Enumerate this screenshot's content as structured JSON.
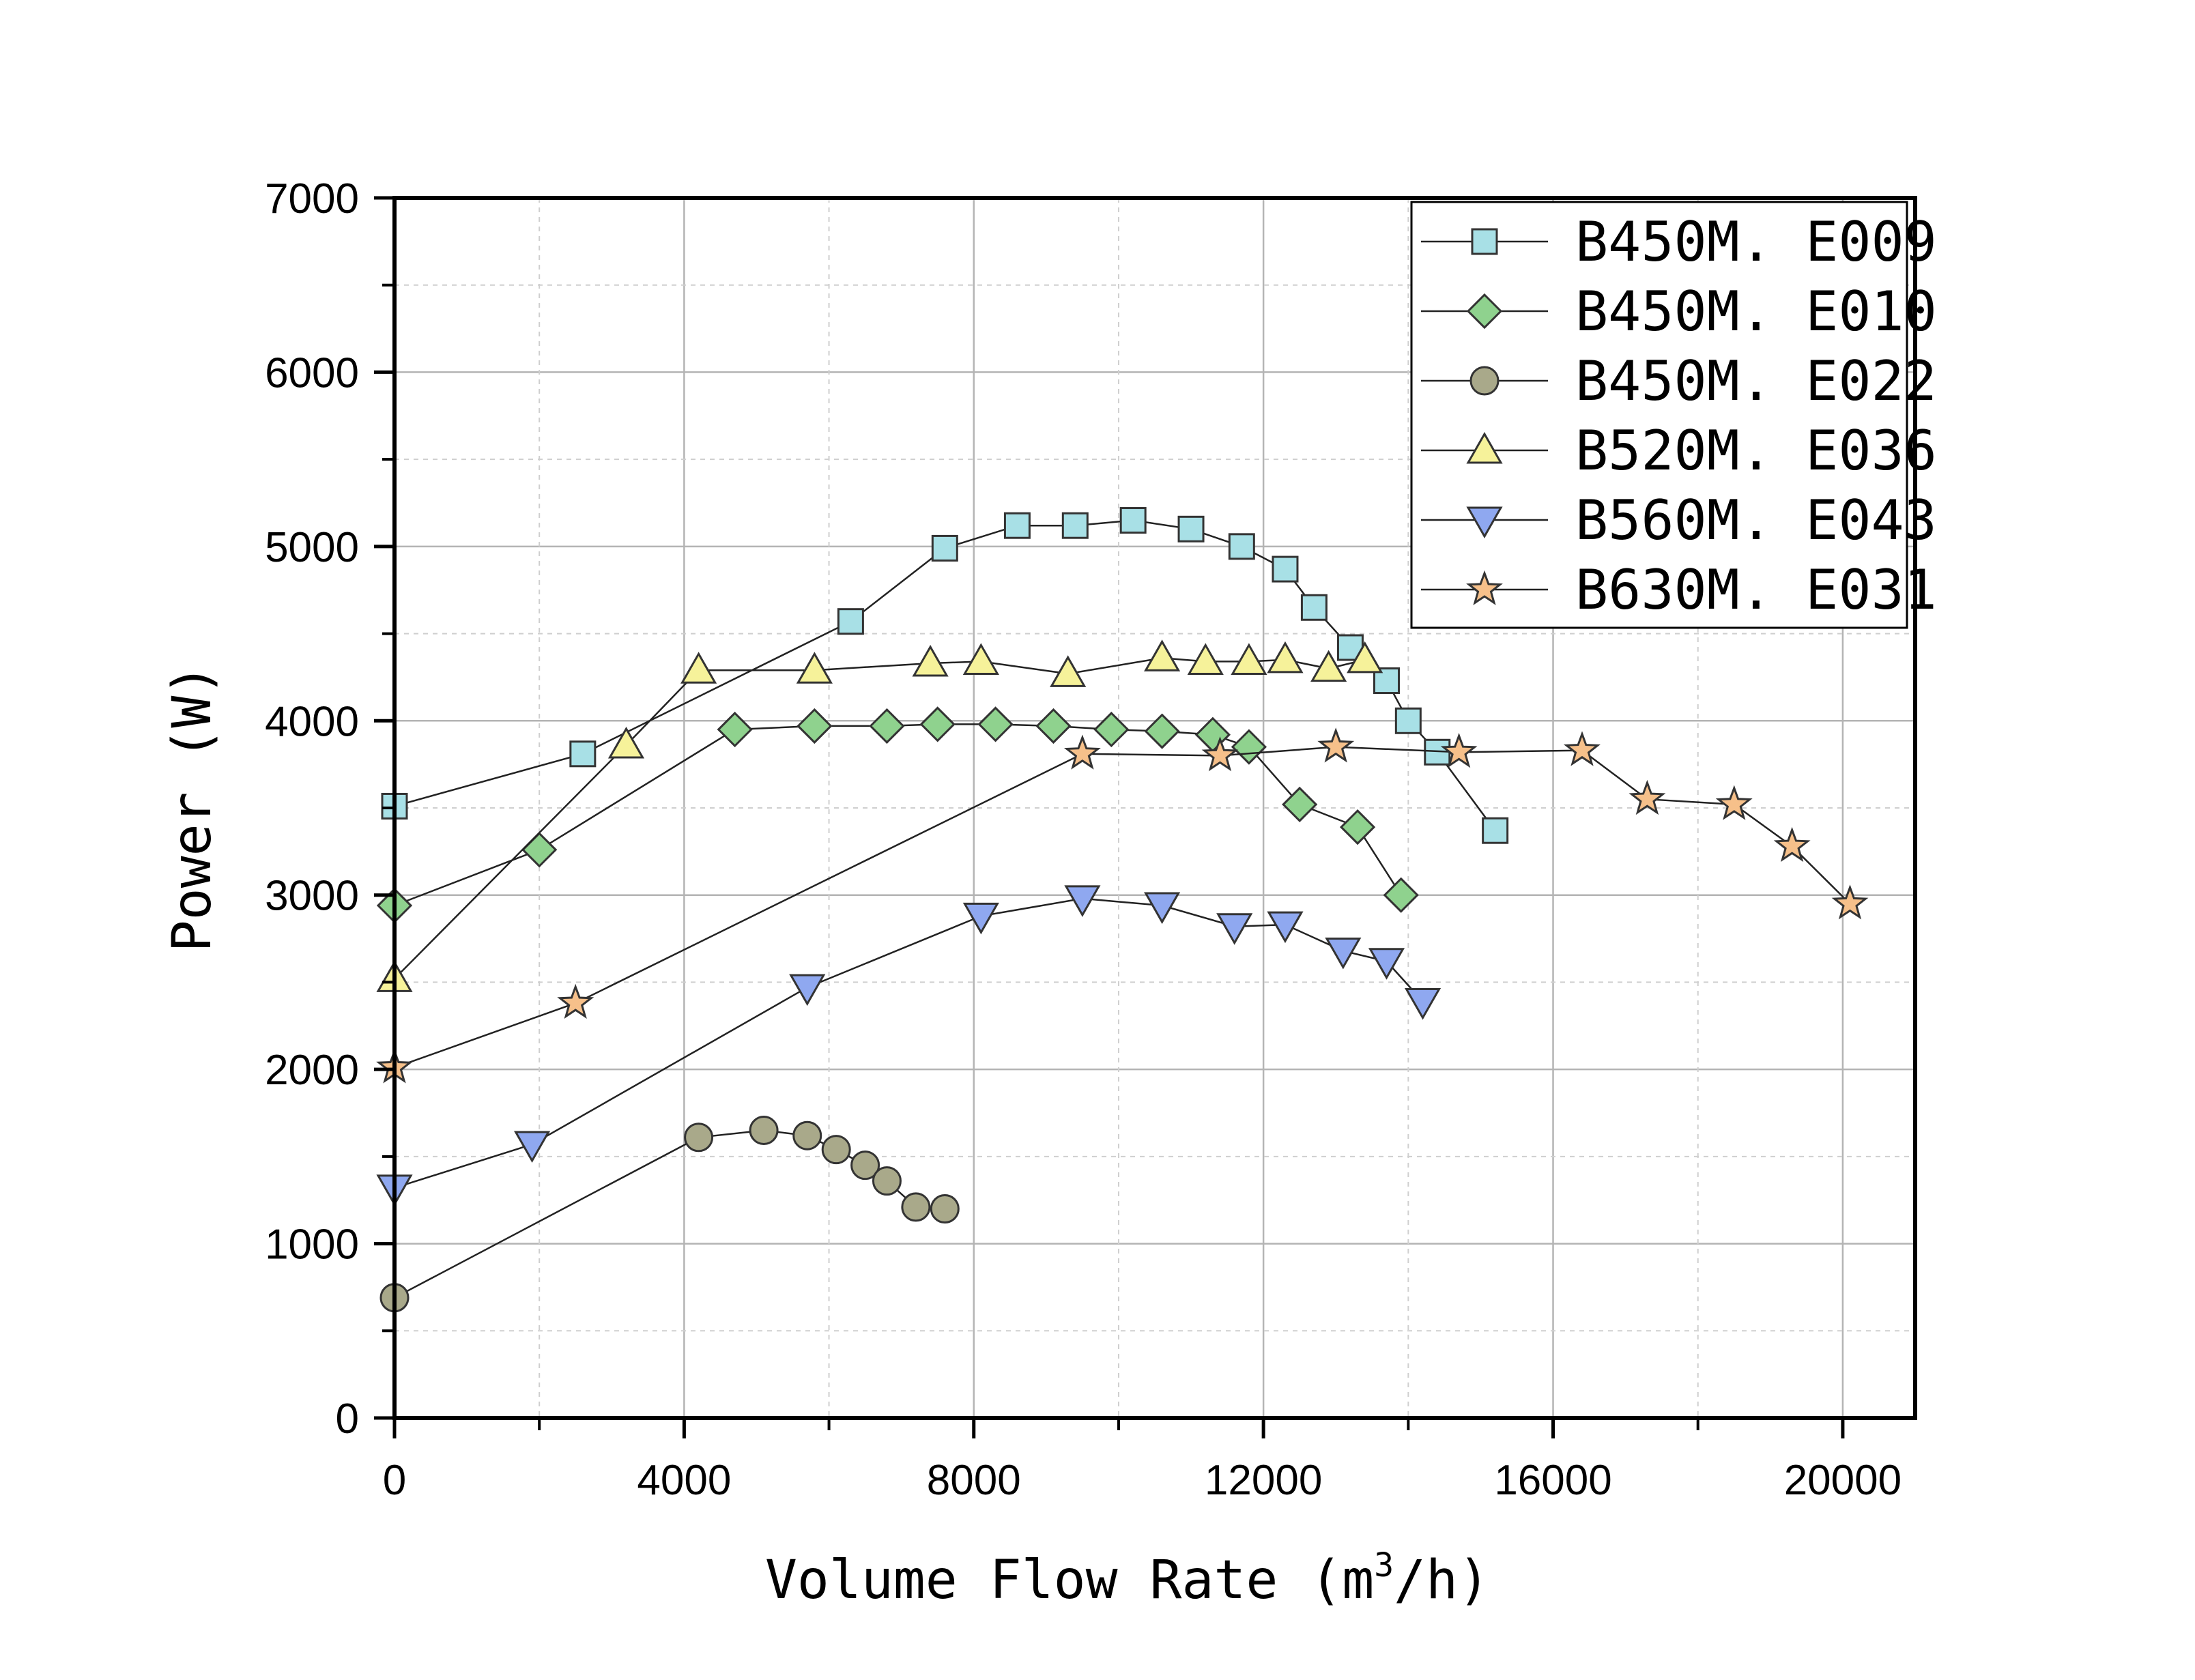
{
  "chart_data": {
    "type": "line",
    "xlabel": "Volume Flow Rate (m",
    "xlabel_sup": "3",
    "xlabel_tail": "/h)",
    "ylabel": "Power (W)",
    "xlim": [
      0,
      21000
    ],
    "ylim": [
      0,
      7000
    ],
    "xticks": [
      "0",
      "4000",
      "8000",
      "12000",
      "16000",
      "20000"
    ],
    "yticks": [
      "0",
      "1000",
      "2000",
      "3000",
      "4000",
      "5000",
      "6000",
      "7000"
    ],
    "grid": true,
    "legend_position": "top-right",
    "series": [
      {
        "name": "B450M. E009",
        "marker": "square",
        "color": "#a8e0e6",
        "x": [
          0,
          2600,
          6300,
          7600,
          8600,
          9400,
          10200,
          11000,
          11700,
          12300,
          12700,
          13200,
          13700,
          14000,
          14400,
          15200
        ],
        "y": [
          3510,
          3810,
          4570,
          4990,
          5120,
          5120,
          5150,
          5100,
          5000,
          4870,
          4650,
          4420,
          4230,
          4000,
          3820,
          3370
        ]
      },
      {
        "name": "B450M. E010",
        "marker": "diamond",
        "color": "#8fd28e",
        "x": [
          0,
          2000,
          4700,
          5800,
          6800,
          7500,
          8300,
          9100,
          9900,
          10600,
          11300,
          11800,
          12500,
          13300,
          13900
        ],
        "y": [
          2940,
          3260,
          3950,
          3970,
          3970,
          3980,
          3980,
          3970,
          3950,
          3940,
          3920,
          3850,
          3520,
          3390,
          3000
        ]
      },
      {
        "name": "B450M. E022",
        "marker": "circle",
        "color": "#a9a98a",
        "x": [
          0,
          4200,
          5100,
          5700,
          6100,
          6500,
          6800,
          7200,
          7600
        ],
        "y": [
          690,
          1610,
          1650,
          1620,
          1540,
          1450,
          1360,
          1210,
          1200
        ]
      },
      {
        "name": "B520M. E036",
        "marker": "triangle-up",
        "color": "#f6f29a",
        "x": [
          0,
          3200,
          4200,
          5800,
          7400,
          8100,
          9300,
          10600,
          11200,
          11800,
          12300,
          12900,
          13400
        ],
        "y": [
          2520,
          3860,
          4290,
          4290,
          4330,
          4340,
          4270,
          4360,
          4340,
          4340,
          4350,
          4300,
          4350
        ]
      },
      {
        "name": "B560M. E043",
        "marker": "triangle-down",
        "color": "#8fa8f0",
        "x": [
          0,
          1900,
          5700,
          8100,
          9500,
          10600,
          11600,
          12300,
          13100,
          13700,
          14200
        ],
        "y": [
          1320,
          1570,
          2470,
          2880,
          2980,
          2940,
          2820,
          2830,
          2680,
          2620,
          2390
        ]
      },
      {
        "name": "B630M. E031",
        "marker": "star",
        "color": "#f6c08a",
        "x": [
          0,
          2500,
          9500,
          11400,
          13000,
          14700,
          16400,
          17300,
          18500,
          19300,
          20100
        ],
        "y": [
          2010,
          2380,
          3810,
          3800,
          3850,
          3820,
          3830,
          3550,
          3520,
          3280,
          2950
        ]
      }
    ]
  }
}
